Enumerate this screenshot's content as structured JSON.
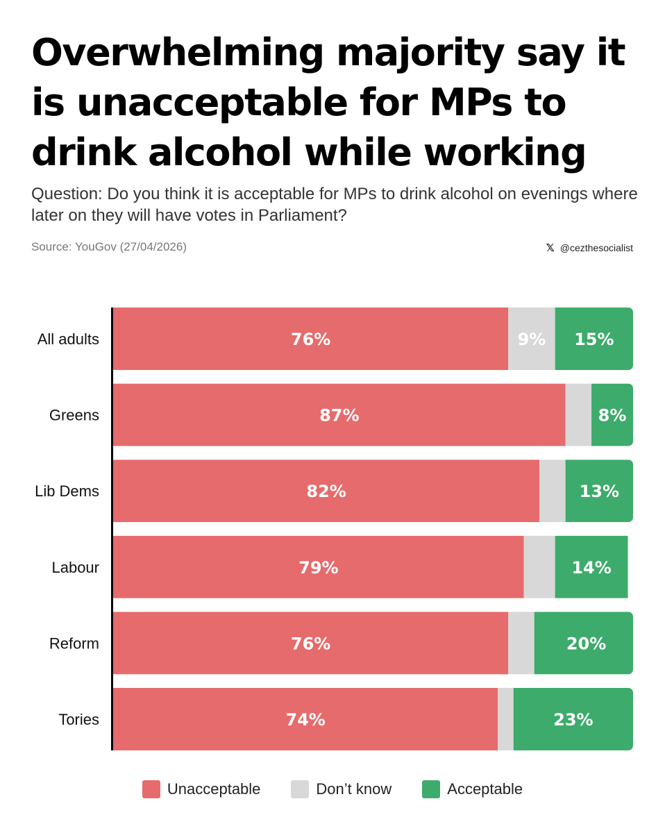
{
  "title": "Overwhelming majority say it is unacceptable for MPs to drink alcohol while working",
  "subtitle": "Question: Do you think it is acceptable for MPs to drink alcohol on evenings where later on they will have votes in Parliament?",
  "source": "Source: YouGov (27/04/2026)",
  "credit": {
    "icon": "x-logo-icon",
    "handle": "@cezthesocialist"
  },
  "colors": {
    "unacceptable": "#e66b6c",
    "dont_know": "#d8d8d8",
    "acceptable": "#3dab6b",
    "axis": "#000000"
  },
  "chart_data": {
    "type": "bar",
    "orientation": "horizontal",
    "stacked": true,
    "categories": [
      "All adults",
      "Greens",
      "Lib Dems",
      "Labour",
      "Reform",
      "Tories"
    ],
    "series": [
      {
        "name": "Unacceptable",
        "values": [
          76,
          87,
          82,
          79,
          76,
          74
        ],
        "labels": [
          "76%",
          "87%",
          "82%",
          "79%",
          "76%",
          "74%"
        ]
      },
      {
        "name": "Don’t know",
        "values": [
          9,
          5,
          5,
          6,
          5,
          3
        ],
        "labels": [
          "9%",
          "",
          "",
          "",
          "",
          ""
        ]
      },
      {
        "name": "Acceptable",
        "values": [
          15,
          8,
          13,
          14,
          20,
          23
        ],
        "labels": [
          "15%",
          "8%",
          "13%",
          "14%",
          "20%",
          "23%"
        ]
      }
    ],
    "xlim": [
      0,
      100
    ],
    "grid": false,
    "legend": "bottom"
  }
}
